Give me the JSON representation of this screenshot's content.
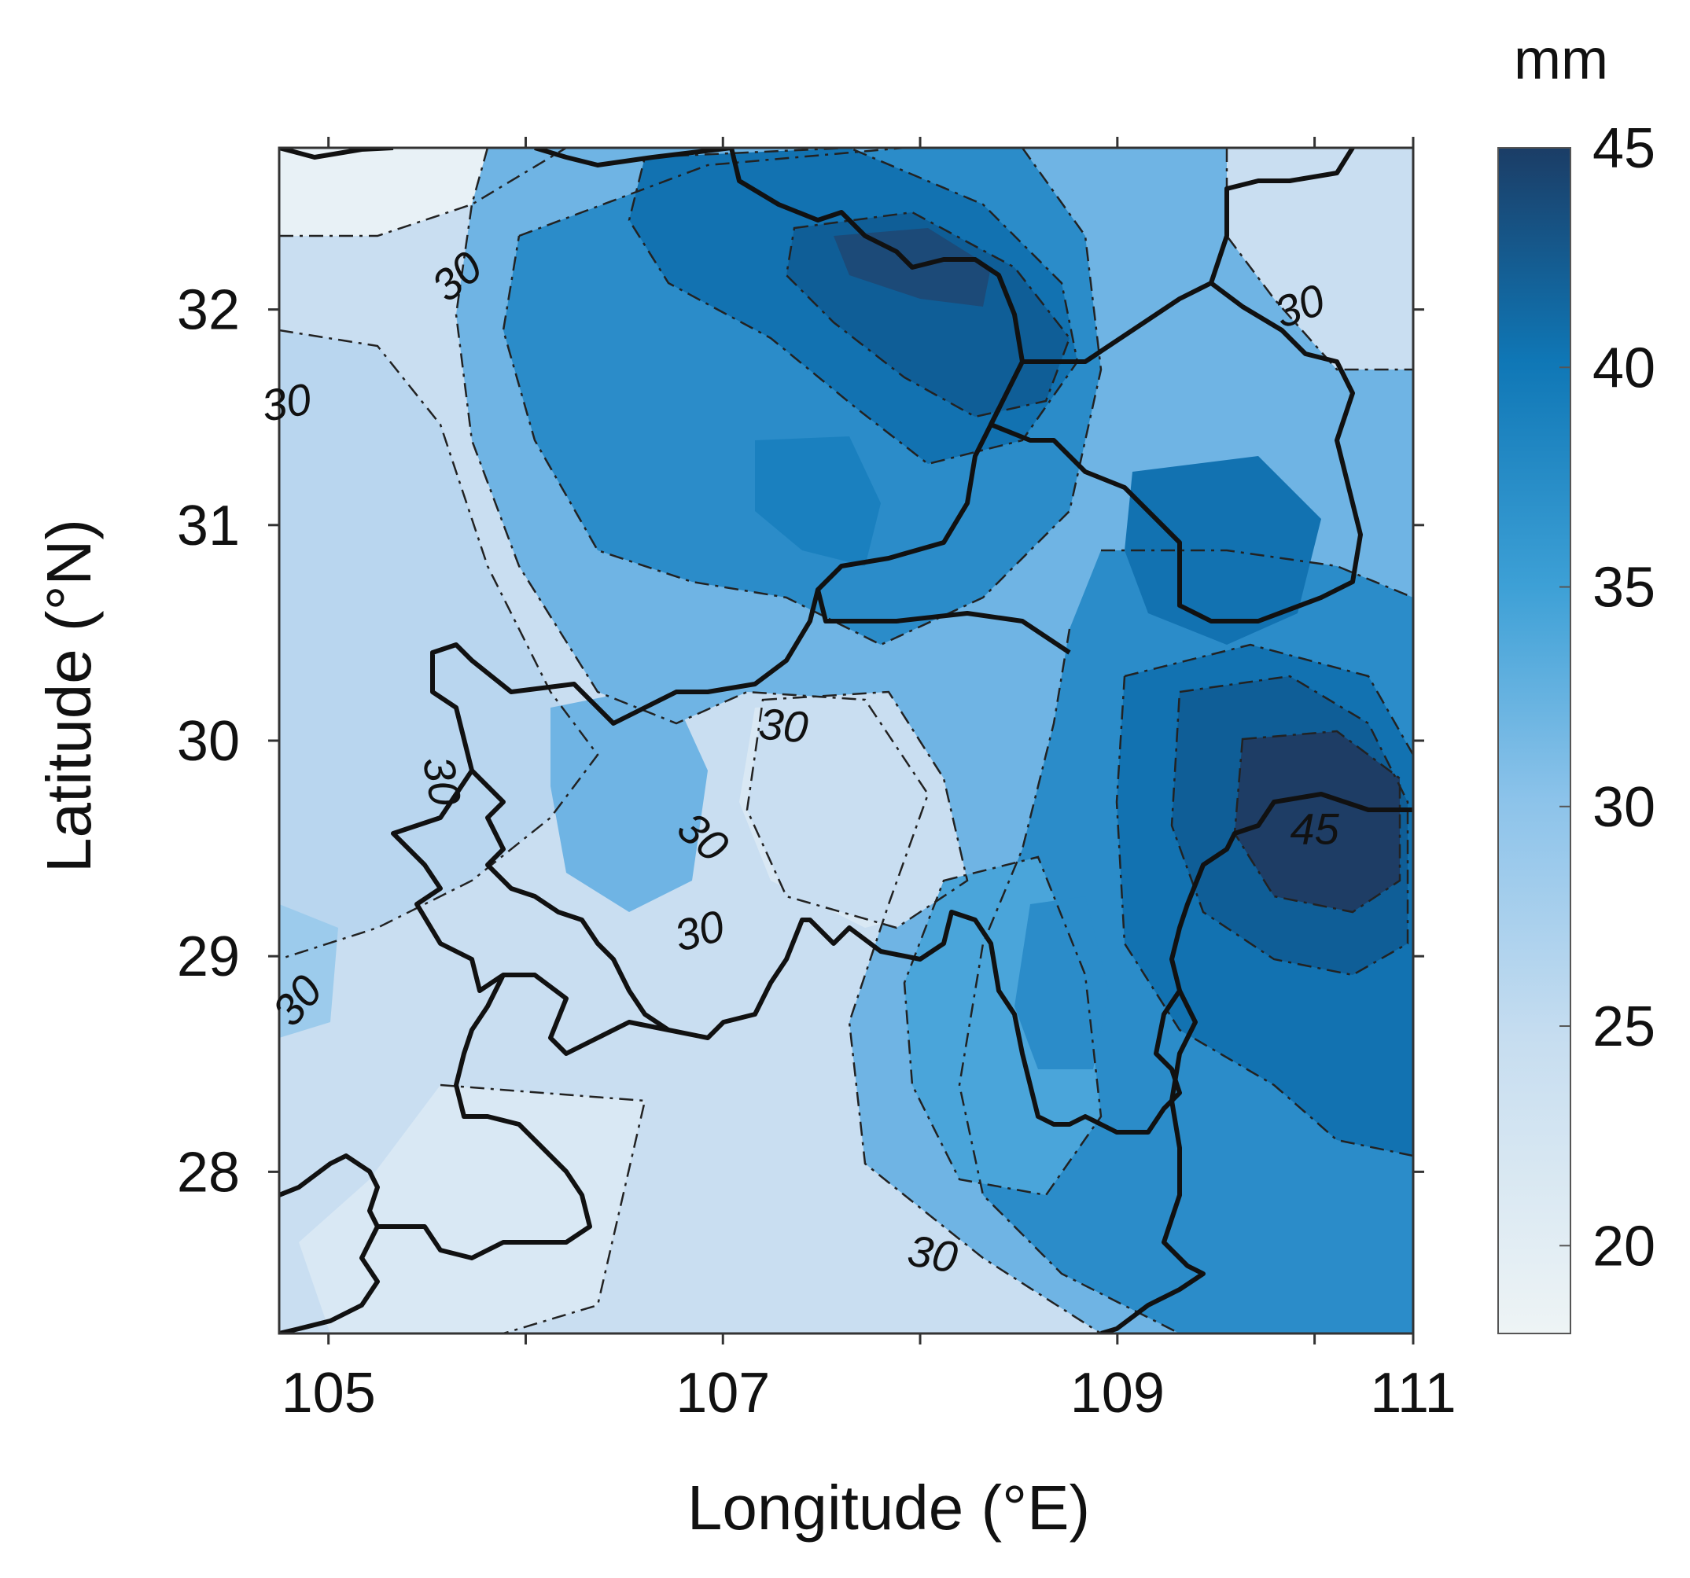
{
  "chart_data": {
    "type": "heatmap",
    "subtype": "filled-contour-map",
    "title": "",
    "xlabel": "Longitude (°E)",
    "ylabel": "Latitude (°N)",
    "xlim": [
      104.75,
      110.5
    ],
    "ylim": [
      27.25,
      32.75
    ],
    "x_ticks": [
      105,
      107,
      109,
      111
    ],
    "x_minor_ticks": [
      106,
      108,
      110
    ],
    "y_ticks": [
      28,
      29,
      30,
      31,
      32
    ],
    "colorbar": {
      "unit": "mm",
      "range": [
        18,
        45
      ],
      "ticks": [
        20,
        25,
        30,
        35,
        40,
        45
      ],
      "colors": [
        "#eef4f5",
        "#c6ddf0",
        "#8cc3ea",
        "#3da0d6",
        "#0f77b6",
        "#1b3d66"
      ]
    },
    "contour_interval": 3,
    "contour_labels": [
      {
        "text": "30",
        "lon": 105.7,
        "lat": 32.1,
        "rotation": -40
      },
      {
        "text": "30",
        "lon": 109.95,
        "lat": 31.95,
        "rotation": -20
      },
      {
        "text": "30",
        "lon": 104.8,
        "lat": 31.5,
        "rotation": -10
      },
      {
        "text": "30",
        "lon": 107.3,
        "lat": 30.0,
        "rotation": 5
      },
      {
        "text": "30",
        "lon": 105.5,
        "lat": 29.8,
        "rotation": 80
      },
      {
        "text": "30",
        "lon": 106.85,
        "lat": 29.5,
        "rotation": 40
      },
      {
        "text": "30",
        "lon": 106.9,
        "lat": 29.05,
        "rotation": -15
      },
      {
        "text": "30",
        "lon": 104.9,
        "lat": 28.75,
        "rotation": -50
      },
      {
        "text": "30",
        "lon": 108.05,
        "lat": 27.55,
        "rotation": 10
      },
      {
        "text": "45",
        "lon": 110.0,
        "lat": 29.52,
        "rotation": 0
      }
    ],
    "grid": false,
    "legend": "colorbar right"
  }
}
